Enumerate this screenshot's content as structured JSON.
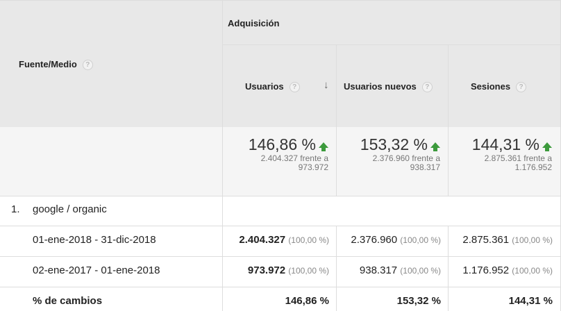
{
  "header": {
    "source_medium": "Fuente/Medio",
    "group": "Adquisición",
    "columns": [
      "Usuarios",
      "Usuarios nuevos",
      "Sesiones"
    ]
  },
  "summary": [
    {
      "change": "146,86 %",
      "compare_line1": "2.404.327 frente a",
      "compare_line2": "973.972"
    },
    {
      "change": "153,32 %",
      "compare_line1": "2.376.960 frente a",
      "compare_line2": "938.317"
    },
    {
      "change": "144,31 %",
      "compare_line1": "2.875.361 frente a",
      "compare_line2": "1.176.952"
    }
  ],
  "group_row": {
    "index": "1.",
    "label": "google / organic"
  },
  "rows": [
    {
      "label": "01-ene-2018 - 31-dic-2018",
      "values": [
        {
          "v": "2.404.327",
          "p": "(100,00 %)"
        },
        {
          "v": "2.376.960",
          "p": "(100,00 %)"
        },
        {
          "v": "2.875.361",
          "p": "(100,00 %)"
        }
      ]
    },
    {
      "label": "02-ene-2017 - 01-ene-2018",
      "values": [
        {
          "v": "973.972",
          "p": "(100,00 %)"
        },
        {
          "v": "938.317",
          "p": "(100,00 %)"
        },
        {
          "v": "1.176.952",
          "p": "(100,00 %)"
        }
      ]
    }
  ],
  "change_row": {
    "label": "% de cambios",
    "values": [
      "146,86 %",
      "153,32 %",
      "144,31 %"
    ]
  },
  "icons": {
    "help": "help-icon",
    "sort": "sort-down-arrow-icon",
    "increase": "arrow-up-icon"
  },
  "colors": {
    "increase": "#3c9a3c",
    "header_bg": "#e8e8e8",
    "summary_bg": "#f5f5f5"
  }
}
